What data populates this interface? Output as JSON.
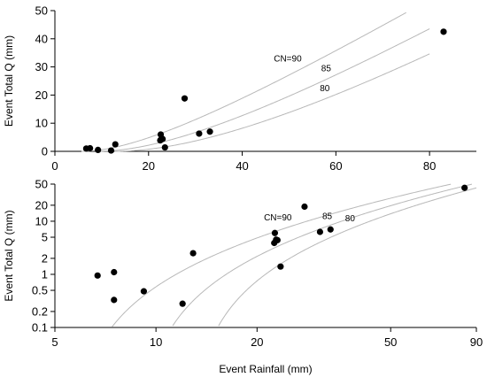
{
  "chart_data": [
    {
      "type": "scatter",
      "title": "",
      "xlabel": "",
      "ylabel": "Event Total Q (mm)",
      "xlim": [
        0,
        90
      ],
      "ylim": [
        0,
        50
      ],
      "xscale": "linear",
      "yscale": "linear",
      "x_ticks": [
        0,
        20,
        40,
        60,
        80
      ],
      "y_ticks": [
        0,
        10,
        20,
        30,
        40,
        50
      ],
      "grid": false,
      "points": {
        "x": [
          6.7,
          7.5,
          9.2,
          12.0,
          12.9,
          22.5,
          22.6,
          22.8,
          23.0,
          23.5,
          27.7,
          30.8,
          33.1,
          83.0
        ],
        "y": [
          1.0,
          1.1,
          0.5,
          0.3,
          2.5,
          3.9,
          6.0,
          4.5,
          4.4,
          1.4,
          18.8,
          6.3,
          7.0,
          42.5
        ]
      },
      "curves": [
        {
          "label": "CN=90",
          "x_end": 75
        },
        {
          "label": "85",
          "x_end": 80
        },
        {
          "label": "80",
          "x_end": 80
        }
      ]
    },
    {
      "type": "scatter",
      "title": "",
      "xlabel": "Event Rainfall (mm)",
      "ylabel": "Event Total Q (mm)",
      "xlim": [
        5,
        90
      ],
      "ylim": [
        0.1,
        50
      ],
      "xscale": "log",
      "yscale": "log",
      "x_ticks": [
        5,
        10,
        20,
        50,
        90
      ],
      "y_ticks": [
        0.1,
        0.2,
        0.5,
        1,
        2,
        5,
        10,
        20,
        50
      ],
      "grid": false,
      "points": {
        "x": [
          6.7,
          7.5,
          7.5,
          9.2,
          12.0,
          12.9,
          22.5,
          22.6,
          22.8,
          23.0,
          23.5,
          27.7,
          30.8,
          33.1,
          83.0
        ],
        "y": [
          0.95,
          1.1,
          0.33,
          0.48,
          0.28,
          2.5,
          3.9,
          6.0,
          4.5,
          4.4,
          1.4,
          18.8,
          6.3,
          7.0,
          42.5
        ]
      },
      "curves": [
        {
          "label": "CN=90",
          "x_end": 90
        },
        {
          "label": "85",
          "x_end": 90
        },
        {
          "label": "80",
          "x_end": 90
        }
      ]
    }
  ]
}
